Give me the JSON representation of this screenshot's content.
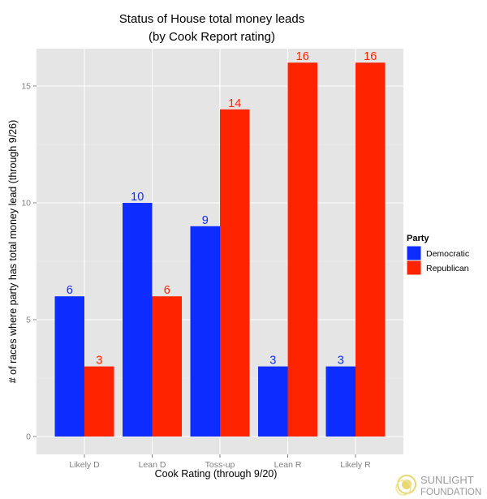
{
  "chart_data": {
    "type": "bar",
    "title": "Status of House total money leads",
    "subtitle": "(by Cook Report rating)",
    "xlabel": "Cook Rating (through 9/20)",
    "ylabel": "# of races where party has total money lead (through 9/26)",
    "categories": [
      "Likely D",
      "Lean D",
      "Toss-up",
      "Lean R",
      "Likely R"
    ],
    "series": [
      {
        "name": "Democratic",
        "values": [
          6,
          10,
          9,
          3,
          3
        ],
        "color": "#0d2cff"
      },
      {
        "name": "Republican",
        "values": [
          3,
          6,
          14,
          16,
          16
        ],
        "color": "#ff2400"
      }
    ],
    "ylim": [
      0,
      16.8
    ],
    "yticks": [
      0,
      5,
      10,
      15
    ],
    "grid": true,
    "legend": {
      "title": "Party",
      "position": "right"
    }
  },
  "branding": {
    "line1": "SUNLIGHT",
    "line2": "FOUNDATION",
    "logo_color": "#e8d870"
  }
}
